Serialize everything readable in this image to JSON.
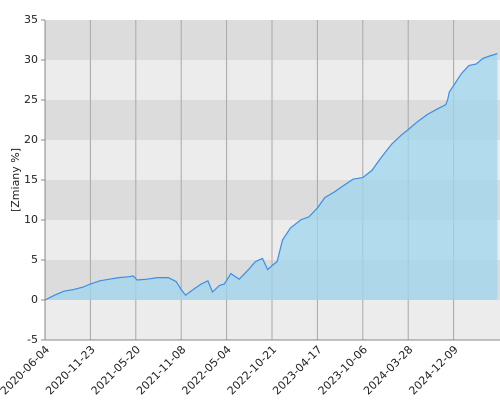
{
  "chart_data": {
    "type": "line",
    "y_label": "[Zmiany %]",
    "x": [
      "2020-06-04",
      "2020-07-10",
      "2020-08-15",
      "2020-09-20",
      "2020-10-25",
      "2020-11-23",
      "2020-12-30",
      "2021-02-05",
      "2021-03-15",
      "2021-04-20",
      "2021-05-10",
      "2021-05-25",
      "2021-07-01",
      "2021-08-10",
      "2021-09-20",
      "2021-10-20",
      "2021-11-08",
      "2021-11-25",
      "2021-12-20",
      "2022-01-25",
      "2022-02-20",
      "2022-03-10",
      "2022-04-05",
      "2022-04-25",
      "2022-05-20",
      "2022-06-20",
      "2022-07-25",
      "2022-08-20",
      "2022-09-15",
      "2022-10-05",
      "2022-10-21",
      "2022-11-10",
      "2022-12-01",
      "2023-01-01",
      "2023-02-10",
      "2023-03-15",
      "2023-04-17",
      "2023-05-15",
      "2023-06-20",
      "2023-07-25",
      "2023-08-30",
      "2023-10-06",
      "2023-11-10",
      "2023-12-15",
      "2024-01-25",
      "2024-03-01",
      "2024-03-28",
      "2024-05-20",
      "2024-07-15",
      "2024-09-10",
      "2024-10-25",
      "2024-11-05",
      "2024-11-15",
      "2024-12-09",
      "2025-01-20",
      "2025-03-01",
      "2025-04-10",
      "2025-05-15",
      "2025-06-20",
      "2025-08-01"
    ],
    "values": [
      0,
      0.6,
      1.1,
      1.3,
      1.6,
      2.0,
      2.4,
      2.6,
      2.8,
      2.9,
      3.0,
      2.5,
      2.6,
      2.8,
      2.8,
      2.3,
      1.3,
      0.6,
      1.2,
      2.0,
      2.4,
      1.0,
      1.8,
      2.0,
      3.3,
      2.6,
      3.8,
      4.8,
      5.2,
      3.8,
      4.3,
      4.8,
      7.5,
      9.0,
      10.0,
      10.4,
      11.5,
      12.8,
      13.5,
      14.3,
      15.1,
      15.3,
      16.2,
      17.8,
      19.5,
      20.6,
      21.3,
      22.3,
      23.2,
      23.9,
      24.4,
      25.0,
      26.0,
      26.8,
      28.3,
      29.3,
      29.5,
      30.2,
      30.5,
      30.8
    ],
    "color": "#3a8ee6",
    "fill_color": "#9fd6ee",
    "xlim": [
      "2020-06-04",
      "2025-08-15"
    ],
    "xticks": [
      "2020-06-04",
      "2020-11-23",
      "2021-05-20",
      "2021-11-08",
      "2022-05-04",
      "2022-10-21",
      "2023-04-17",
      "2023-10-06",
      "2024-03-28",
      "2024-12-09"
    ],
    "ylim": [
      -5,
      35
    ],
    "yticks": [
      -5,
      0,
      5,
      10,
      15,
      20,
      25,
      30,
      35
    ],
    "band_colors": [
      "#ececec",
      "#dcdcdc"
    ],
    "grid": true
  }
}
